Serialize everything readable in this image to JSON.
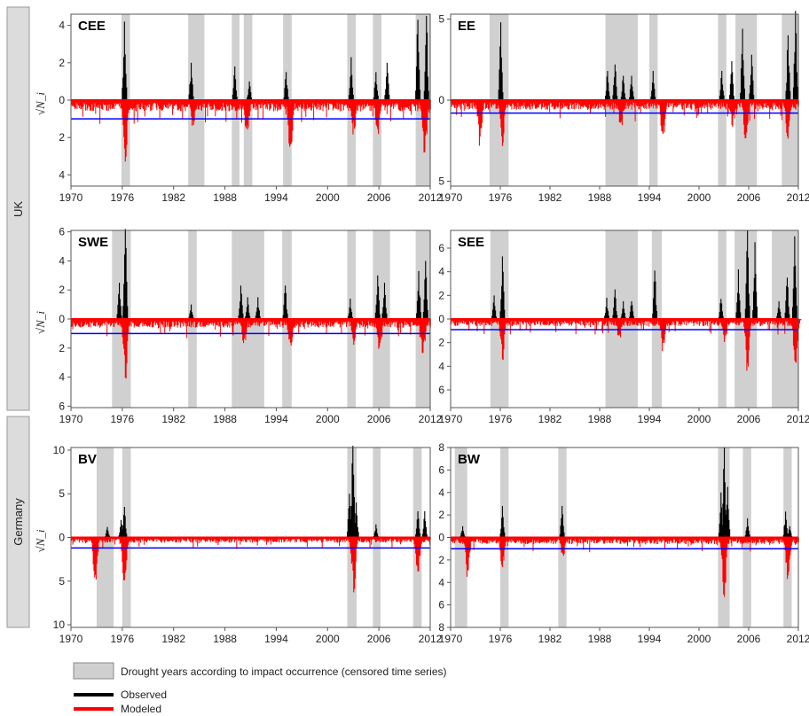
{
  "groups": [
    {
      "label": "UK",
      "panels": [
        "CEE",
        "EE",
        "SWE",
        "SEE"
      ]
    },
    {
      "label": "Germany",
      "panels": [
        "BV",
        "BW"
      ]
    }
  ],
  "ylabel": "√N_i",
  "legend": {
    "drought": "Drought years according to impact occurrence (censored time series)",
    "observed": "Observed",
    "modeled": "Modeled"
  },
  "colors": {
    "drought": "#d0d0d0",
    "observed": "#000000",
    "modeled": "#ff0000",
    "threshold": "#0000ff",
    "zero_line": "#ff0000"
  },
  "chart_data": [
    {
      "type": "bar",
      "title": "CEE",
      "xlim": [
        1970,
        2012
      ],
      "ylim": [
        -4.6,
        4.6
      ],
      "xticks": [
        1970,
        1976,
        1982,
        1988,
        1994,
        2000,
        2006,
        2012
      ],
      "yticks": [
        {
          "v": 4,
          "l": "4"
        },
        {
          "v": 2,
          "l": "2"
        },
        {
          "v": 0,
          "l": "0"
        },
        {
          "v": -2,
          "l": "2"
        },
        {
          "v": -4,
          "l": "4"
        }
      ],
      "threshold": -1.0,
      "drought_periods": [
        [
          1975.9,
          1976.9
        ],
        [
          1983.7,
          1985.6
        ],
        [
          1988.8,
          1989.7
        ],
        [
          1990.2,
          1991.2
        ],
        [
          1994.8,
          1995.8
        ],
        [
          2002.3,
          2003.3
        ],
        [
          2005.3,
          2006.3
        ],
        [
          2010.3,
          2012.0
        ]
      ],
      "observed_peaks": [
        [
          1976.2,
          4.2
        ],
        [
          1984.0,
          2.0
        ],
        [
          1989.1,
          1.8
        ],
        [
          1990.8,
          1.0
        ],
        [
          1995.1,
          1.5
        ],
        [
          2002.7,
          2.3
        ],
        [
          2005.6,
          1.5
        ],
        [
          2006.9,
          2.0
        ],
        [
          2010.5,
          4.3
        ],
        [
          2011.5,
          4.5
        ]
      ],
      "modeled_peaks": [
        [
          1976.3,
          3.6
        ],
        [
          1984.2,
          1.5
        ],
        [
          1990.5,
          2.0
        ],
        [
          1995.6,
          3.4
        ],
        [
          2003.0,
          2.0
        ],
        [
          2005.8,
          2.0
        ],
        [
          2011.3,
          3.6
        ]
      ]
    },
    {
      "type": "bar",
      "title": "EE",
      "xlim": [
        1970,
        2012
      ],
      "ylim": [
        -5.3,
        5.3
      ],
      "xticks": [
        1970,
        1976,
        1982,
        1988,
        1994,
        2000,
        2006,
        2012
      ],
      "yticks": [
        {
          "v": 5,
          "l": "5"
        },
        {
          "v": 0,
          "l": "0"
        },
        {
          "v": -5,
          "l": "5"
        }
      ],
      "threshold": -0.8,
      "drought_periods": [
        [
          1974.7,
          1977.0
        ],
        [
          1988.7,
          1992.6
        ],
        [
          1994.0,
          1995.0
        ],
        [
          2002.3,
          2003.3
        ],
        [
          2004.4,
          2007.0
        ],
        [
          2010.0,
          2012.0
        ]
      ],
      "observed_peaks": [
        [
          1976.0,
          4.8
        ],
        [
          1988.9,
          1.8
        ],
        [
          1989.8,
          2.2
        ],
        [
          1990.8,
          1.5
        ],
        [
          1991.8,
          1.5
        ],
        [
          1994.4,
          1.8
        ],
        [
          2002.7,
          1.8
        ],
        [
          2003.9,
          2.4
        ],
        [
          2005.2,
          4.4
        ],
        [
          2006.3,
          2.8
        ],
        [
          2010.7,
          4.0
        ],
        [
          2011.6,
          5.5
        ]
      ],
      "modeled_peaks": [
        [
          1973.5,
          3.3
        ],
        [
          1976.2,
          3.1
        ],
        [
          1990.5,
          2.1
        ],
        [
          1995.6,
          3.0
        ],
        [
          2004.0,
          1.8
        ],
        [
          2005.6,
          3.0
        ],
        [
          2010.7,
          2.9
        ]
      ]
    },
    {
      "type": "bar",
      "title": "SWE",
      "xlim": [
        1970,
        2012
      ],
      "ylim": [
        -6.1,
        6.1
      ],
      "xticks": [
        1970,
        1976,
        1982,
        1988,
        1994,
        2000,
        2006,
        2012
      ],
      "yticks": [
        {
          "v": 6,
          "l": "6"
        },
        {
          "v": 4,
          "l": "4"
        },
        {
          "v": 2,
          "l": "2"
        },
        {
          "v": 0,
          "l": "0"
        },
        {
          "v": -2,
          "l": "2"
        },
        {
          "v": -4,
          "l": "4"
        },
        {
          "v": -6,
          "l": "6"
        }
      ],
      "threshold": -1.0,
      "drought_periods": [
        [
          1974.8,
          1977.0
        ],
        [
          1983.7,
          1984.7
        ],
        [
          1988.8,
          1992.6
        ],
        [
          1994.7,
          1995.8
        ],
        [
          2002.3,
          2003.3
        ],
        [
          2005.3,
          2007.3
        ],
        [
          2010.3,
          2012.0
        ]
      ],
      "observed_peaks": [
        [
          1975.6,
          2.5
        ],
        [
          1976.3,
          6.2
        ],
        [
          1984.0,
          1.0
        ],
        [
          1989.8,
          2.3
        ],
        [
          1990.6,
          1.5
        ],
        [
          1991.8,
          1.5
        ],
        [
          1995.0,
          2.3
        ],
        [
          2002.6,
          1.4
        ],
        [
          2005.8,
          3.0
        ],
        [
          2006.6,
          2.5
        ],
        [
          2010.6,
          3.3
        ],
        [
          2011.4,
          4.0
        ]
      ],
      "modeled_peaks": [
        [
          1976.3,
          4.5
        ],
        [
          1990.2,
          2.0
        ],
        [
          1995.6,
          2.4
        ],
        [
          2003.0,
          1.8
        ],
        [
          2006.0,
          2.6
        ],
        [
          2011.1,
          3.0
        ]
      ]
    },
    {
      "type": "bar",
      "title": "SEE",
      "xlim": [
        1970,
        2012
      ],
      "ylim": [
        -7.5,
        7.5
      ],
      "xticks": [
        1970,
        1976,
        1982,
        1988,
        1994,
        2000,
        2006,
        2012
      ],
      "yticks": [
        {
          "v": 6,
          "l": "6"
        },
        {
          "v": 4,
          "l": "4"
        },
        {
          "v": 2,
          "l": "2"
        },
        {
          "v": 0,
          "l": "0"
        },
        {
          "v": -2,
          "l": "2"
        },
        {
          "v": -4,
          "l": "4"
        },
        {
          "v": -6,
          "l": "6"
        }
      ],
      "threshold": -0.9,
      "drought_periods": [
        [
          1974.8,
          1977.0
        ],
        [
          1988.7,
          1992.6
        ],
        [
          1994.3,
          1995.5
        ],
        [
          2002.3,
          2003.3
        ],
        [
          2004.3,
          2007.0
        ],
        [
          2008.8,
          2012.0
        ]
      ],
      "observed_peaks": [
        [
          1975.2,
          2.0
        ],
        [
          1976.2,
          5.3
        ],
        [
          1988.8,
          1.8
        ],
        [
          1989.8,
          2.5
        ],
        [
          1990.8,
          1.5
        ],
        [
          1991.8,
          1.5
        ],
        [
          1994.6,
          4.1
        ],
        [
          2002.6,
          1.7
        ],
        [
          2004.7,
          4.2
        ],
        [
          2005.8,
          7.5
        ],
        [
          2006.7,
          6.5
        ],
        [
          2009.6,
          1.5
        ],
        [
          2010.6,
          3.5
        ],
        [
          2011.5,
          7.0
        ]
      ],
      "modeled_peaks": [
        [
          1976.2,
          3.8
        ],
        [
          1990.3,
          2.1
        ],
        [
          1995.6,
          3.0
        ],
        [
          2003.0,
          2.0
        ],
        [
          2005.8,
          5.0
        ],
        [
          2011.6,
          5.0
        ]
      ]
    },
    {
      "type": "bar",
      "title": "BV",
      "xlim": [
        1970,
        2012
      ],
      "ylim": [
        -10.3,
        10.3
      ],
      "xticks": [
        1970,
        1976,
        1982,
        1988,
        1994,
        2000,
        2006,
        2012
      ],
      "yticks": [
        {
          "v": 10,
          "l": "10"
        },
        {
          "v": 5,
          "l": "5"
        },
        {
          "v": 0,
          "l": "0"
        },
        {
          "v": -5,
          "l": "5"
        },
        {
          "v": -10,
          "l": "10"
        }
      ],
      "threshold": -1.2,
      "drought_periods": [
        [
          1973.0,
          1975.0
        ],
        [
          1976.0,
          1977.0
        ],
        [
          2002.3,
          2003.4
        ],
        [
          2005.3,
          2006.2
        ],
        [
          2010.0,
          2011.0
        ]
      ],
      "observed_peaks": [
        [
          1974.2,
          1.2
        ],
        [
          1975.8,
          2.0
        ],
        [
          1976.2,
          3.5
        ],
        [
          2002.5,
          5.0
        ],
        [
          2002.9,
          10.5
        ],
        [
          2003.3,
          4.0
        ],
        [
          2005.6,
          1.5
        ],
        [
          2010.5,
          3.0
        ],
        [
          2011.3,
          3.0
        ]
      ],
      "modeled_peaks": [
        [
          1972.8,
          6.0
        ],
        [
          1976.2,
          5.5
        ],
        [
          2003.0,
          6.5
        ],
        [
          2010.5,
          4.8
        ]
      ]
    },
    {
      "type": "bar",
      "title": "BW",
      "xlim": [
        1970,
        2012
      ],
      "ylim": [
        -8.0,
        8.0
      ],
      "xticks": [
        1970,
        1976,
        1982,
        1988,
        1994,
        2000,
        2006,
        2012
      ],
      "yticks": [
        {
          "v": 8,
          "l": "8"
        },
        {
          "v": 6,
          "l": "6"
        },
        {
          "v": 4,
          "l": "4"
        },
        {
          "v": 2,
          "l": "2"
        },
        {
          "v": 0,
          "l": "0"
        },
        {
          "v": -2,
          "l": "2"
        },
        {
          "v": -4,
          "l": "4"
        },
        {
          "v": -6,
          "l": "6"
        },
        {
          "v": -8,
          "l": "8"
        }
      ],
      "threshold": -1.0,
      "drought_periods": [
        [
          1970.5,
          1972.0
        ],
        [
          1976.0,
          1977.0
        ],
        [
          1983.0,
          1984.0
        ],
        [
          2002.3,
          2003.7
        ],
        [
          2005.3,
          2006.3
        ],
        [
          2010.2,
          2011.2
        ]
      ],
      "observed_peaks": [
        [
          1971.4,
          1.0
        ],
        [
          1976.2,
          2.8
        ],
        [
          1983.4,
          2.8
        ],
        [
          2002.6,
          4.0
        ],
        [
          2003.0,
          8.0
        ],
        [
          2003.4,
          4.5
        ],
        [
          2005.8,
          1.7
        ],
        [
          2010.4,
          2.3
        ],
        [
          2010.9,
          1.0
        ]
      ],
      "modeled_peaks": [
        [
          1972.0,
          3.8
        ],
        [
          1976.2,
          3.0
        ],
        [
          1983.5,
          2.0
        ],
        [
          2003.0,
          5.5
        ],
        [
          2010.7,
          4.3
        ]
      ]
    }
  ]
}
